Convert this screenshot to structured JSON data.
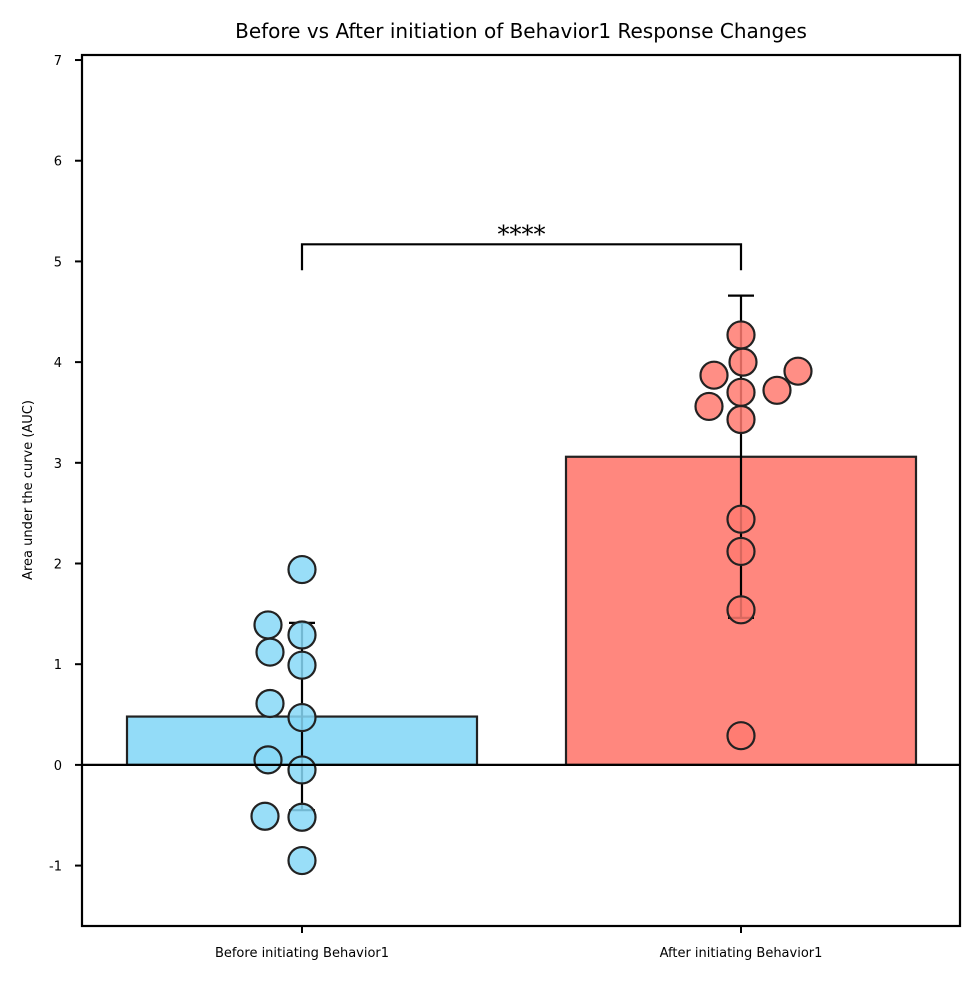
{
  "chart_data": {
    "type": "bar",
    "title": "Before vs After initiation of Behavior1 Response Changes",
    "xlabel": "",
    "ylabel": "Area under the curve (AUC)",
    "ylim": [
      -1.6,
      7.05
    ],
    "yticks": [
      -1,
      0,
      1,
      2,
      3,
      4,
      5,
      6,
      7
    ],
    "ytick_labels": [
      "-1",
      "0",
      "1",
      "2",
      "3",
      "4",
      "5",
      "6",
      "7"
    ],
    "categories": [
      "Before initiating Behavior1",
      "After initiating Behavior1"
    ],
    "values": [
      0.48,
      3.06
    ],
    "error": [
      0.93,
      1.6
    ],
    "colors": {
      "before": "#87d8f7",
      "after": "#ff7a70",
      "edge": "#222222"
    },
    "points": [
      {
        "category": "Before initiating Behavior1",
        "values": [
          1.94,
          1.39,
          1.12,
          1.29,
          0.99,
          0.61,
          0.47,
          0.05,
          -0.05,
          -0.51,
          -0.52,
          -0.95
        ]
      },
      {
        "category": "After initiating Behavior1",
        "values": [
          4.27,
          4.0,
          3.87,
          3.91,
          3.7,
          3.72,
          3.56,
          3.43,
          2.44,
          2.12,
          1.54,
          0.29
        ]
      }
    ],
    "significance": {
      "label": "****",
      "y": 5.17
    },
    "grid": false,
    "legend": "none"
  }
}
